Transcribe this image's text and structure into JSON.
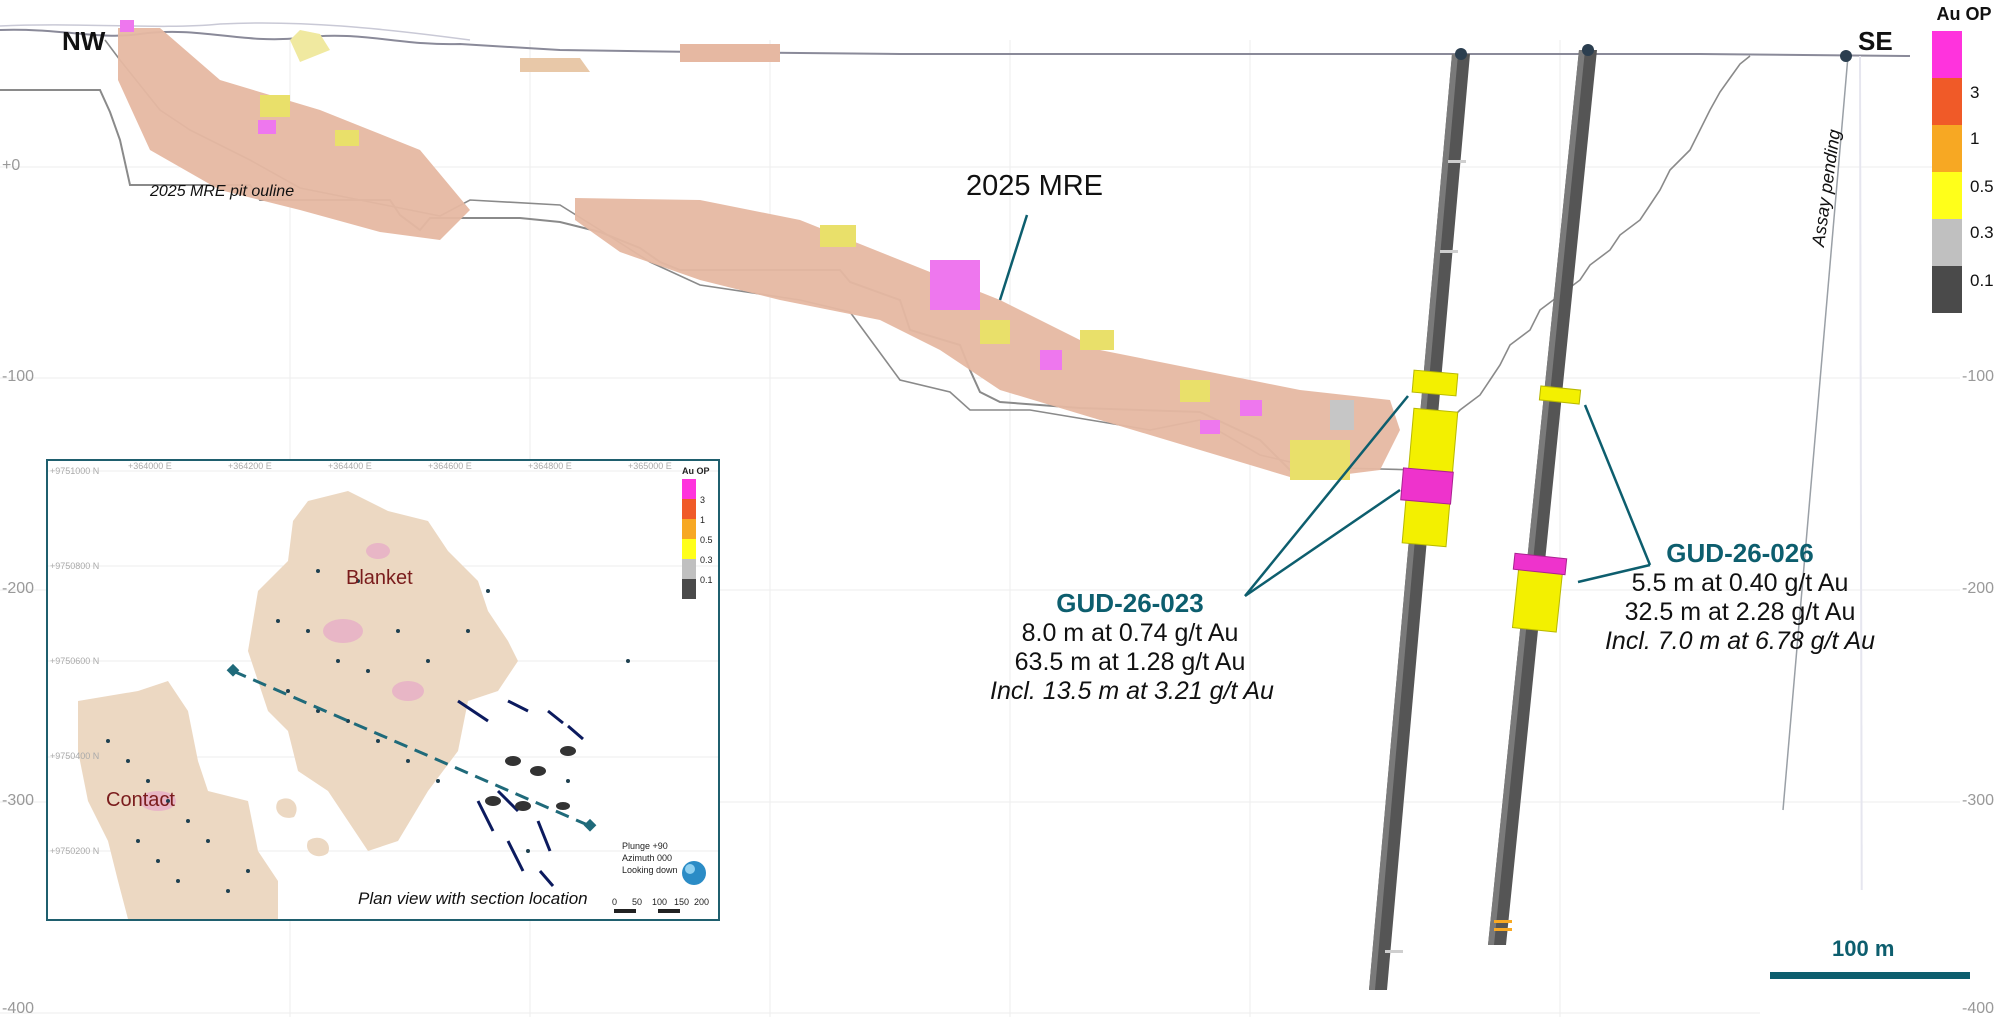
{
  "labels": {
    "nw": "NW",
    "se": "SE",
    "mre_pit": "2025 MRE pit ouline",
    "mre": "2025 MRE",
    "assay_pending": "Assay pending",
    "scale": "100 m"
  },
  "depth_ticks": [
    "+0",
    "-100",
    "-200",
    "-300",
    "-400"
  ],
  "right_ticks": [
    "-100",
    "-200",
    "-300",
    "-400"
  ],
  "legend": {
    "title": "Au OP",
    "items": [
      {
        "label": "3",
        "color": "#ff33dd"
      },
      {
        "label": "1",
        "color": "#f05a28"
      },
      {
        "label": "0.5",
        "color": "#f7a823"
      },
      {
        "label": "0.3",
        "color": "#ffff1a"
      },
      {
        "label": "0.1",
        "color": "#c0c0c0"
      },
      {
        "label": "",
        "color": "#4a4a4a"
      }
    ]
  },
  "holes": [
    {
      "name": "GUD-26-023",
      "lines": [
        "8.0 m at 0.74 g/t Au",
        "63.5 m at 1.28 g/t Au"
      ],
      "incl": "Incl. 13.5 m at 3.21 g/t Au"
    },
    {
      "name": "GUD-26-026",
      "lines": [
        "5.5 m at 0.40 g/t Au",
        "32.5 m at 2.28 g/t Au"
      ],
      "incl": "Incl. 7.0 m at 6.78 g/t Au"
    }
  ],
  "inset": {
    "blanket": "Blanket",
    "contact": "Contact",
    "caption": "Plan view with section location",
    "legend_title": "Au OP",
    "legend_items": [
      "3",
      "1",
      "0.5",
      "0.3",
      "0.1"
    ],
    "plunge": "Plunge +90",
    "azimuth": "Azimuth 000",
    "looking": "Looking down",
    "scale_ticks": [
      "0",
      "50",
      "100",
      "150",
      "200"
    ],
    "northings": [
      "+9751000 N",
      "+9750800 N",
      "+9750600 N",
      "+9750400 N",
      "+9750200 N"
    ],
    "eastings": [
      "+364000 E",
      "+364200 E",
      "+364400 E",
      "+364600 E",
      "+364800 E",
      "+365000 E"
    ]
  }
}
